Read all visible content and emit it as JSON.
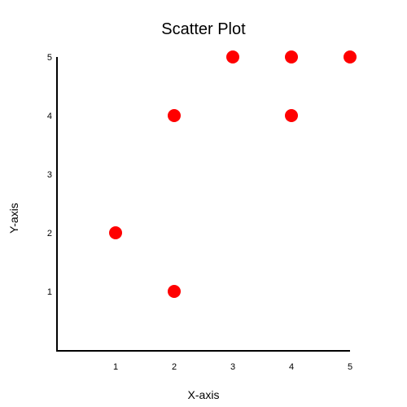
{
  "chart_data": {
    "type": "scatter",
    "title": "Scatter Plot",
    "xlabel": "X-axis",
    "ylabel": "Y-axis",
    "xlim": [
      0,
      5
    ],
    "ylim": [
      0,
      5
    ],
    "xticks": [
      "1",
      "2",
      "3",
      "4",
      "5"
    ],
    "yticks": [
      "1",
      "2",
      "3",
      "4",
      "5"
    ],
    "grid": false,
    "points": [
      {
        "x": 1,
        "y": 2
      },
      {
        "x": 2,
        "y": 1
      },
      {
        "x": 2,
        "y": 4
      },
      {
        "x": 3,
        "y": 5
      },
      {
        "x": 4,
        "y": 5
      },
      {
        "x": 4,
        "y": 4
      },
      {
        "x": 5,
        "y": 5
      }
    ],
    "marker_color": "#ff0000"
  }
}
